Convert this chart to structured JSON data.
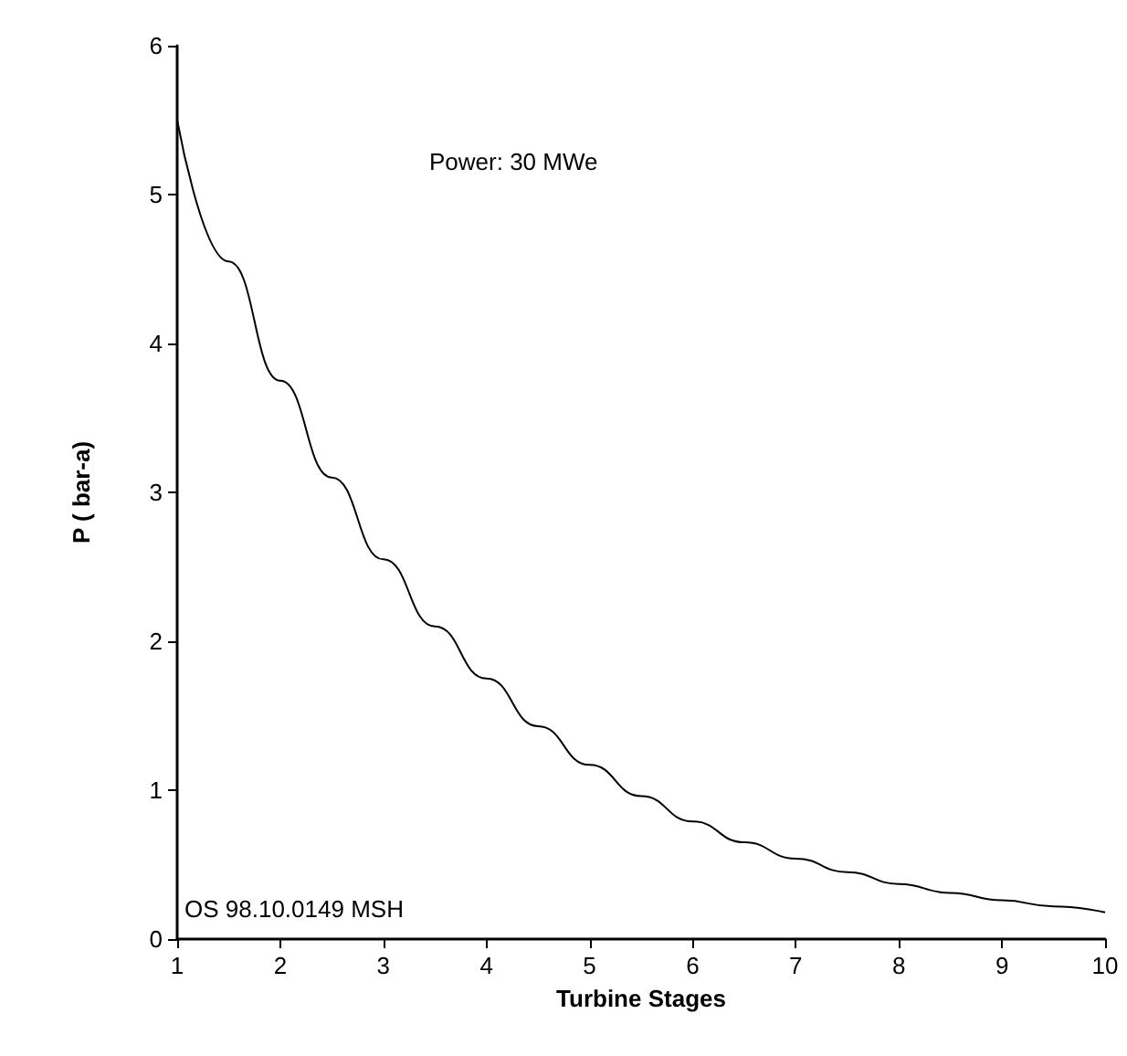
{
  "chart_data": {
    "type": "line",
    "xlabel": "Turbine Stages",
    "ylabel": "P ( bar-a)",
    "annotations": [
      "Power: 30 MWe",
      "OS 98.10.0149 MSH"
    ],
    "x": [
      1,
      1.5,
      2,
      2.5,
      3,
      3.5,
      4,
      4.5,
      5,
      5.5,
      6,
      6.5,
      7,
      7.5,
      8,
      8.5,
      9,
      9.5,
      10
    ],
    "series": [
      {
        "color": "#000000",
        "values": [
          5.5,
          4.55,
          3.75,
          3.1,
          2.55,
          2.1,
          1.75,
          1.43,
          1.17,
          0.96,
          0.79,
          0.65,
          0.54,
          0.45,
          0.37,
          0.31,
          0.26,
          0.22,
          0.18
        ]
      }
    ],
    "xlim": [
      1,
      10
    ],
    "xticks": [
      1,
      2,
      3,
      4,
      5,
      6,
      7,
      8,
      9,
      10
    ],
    "ylim": [
      0,
      6
    ],
    "yticks": [
      0,
      1,
      2,
      3,
      4,
      5,
      6
    ],
    "grid": false,
    "marker": "none",
    "line_style": "solid"
  }
}
